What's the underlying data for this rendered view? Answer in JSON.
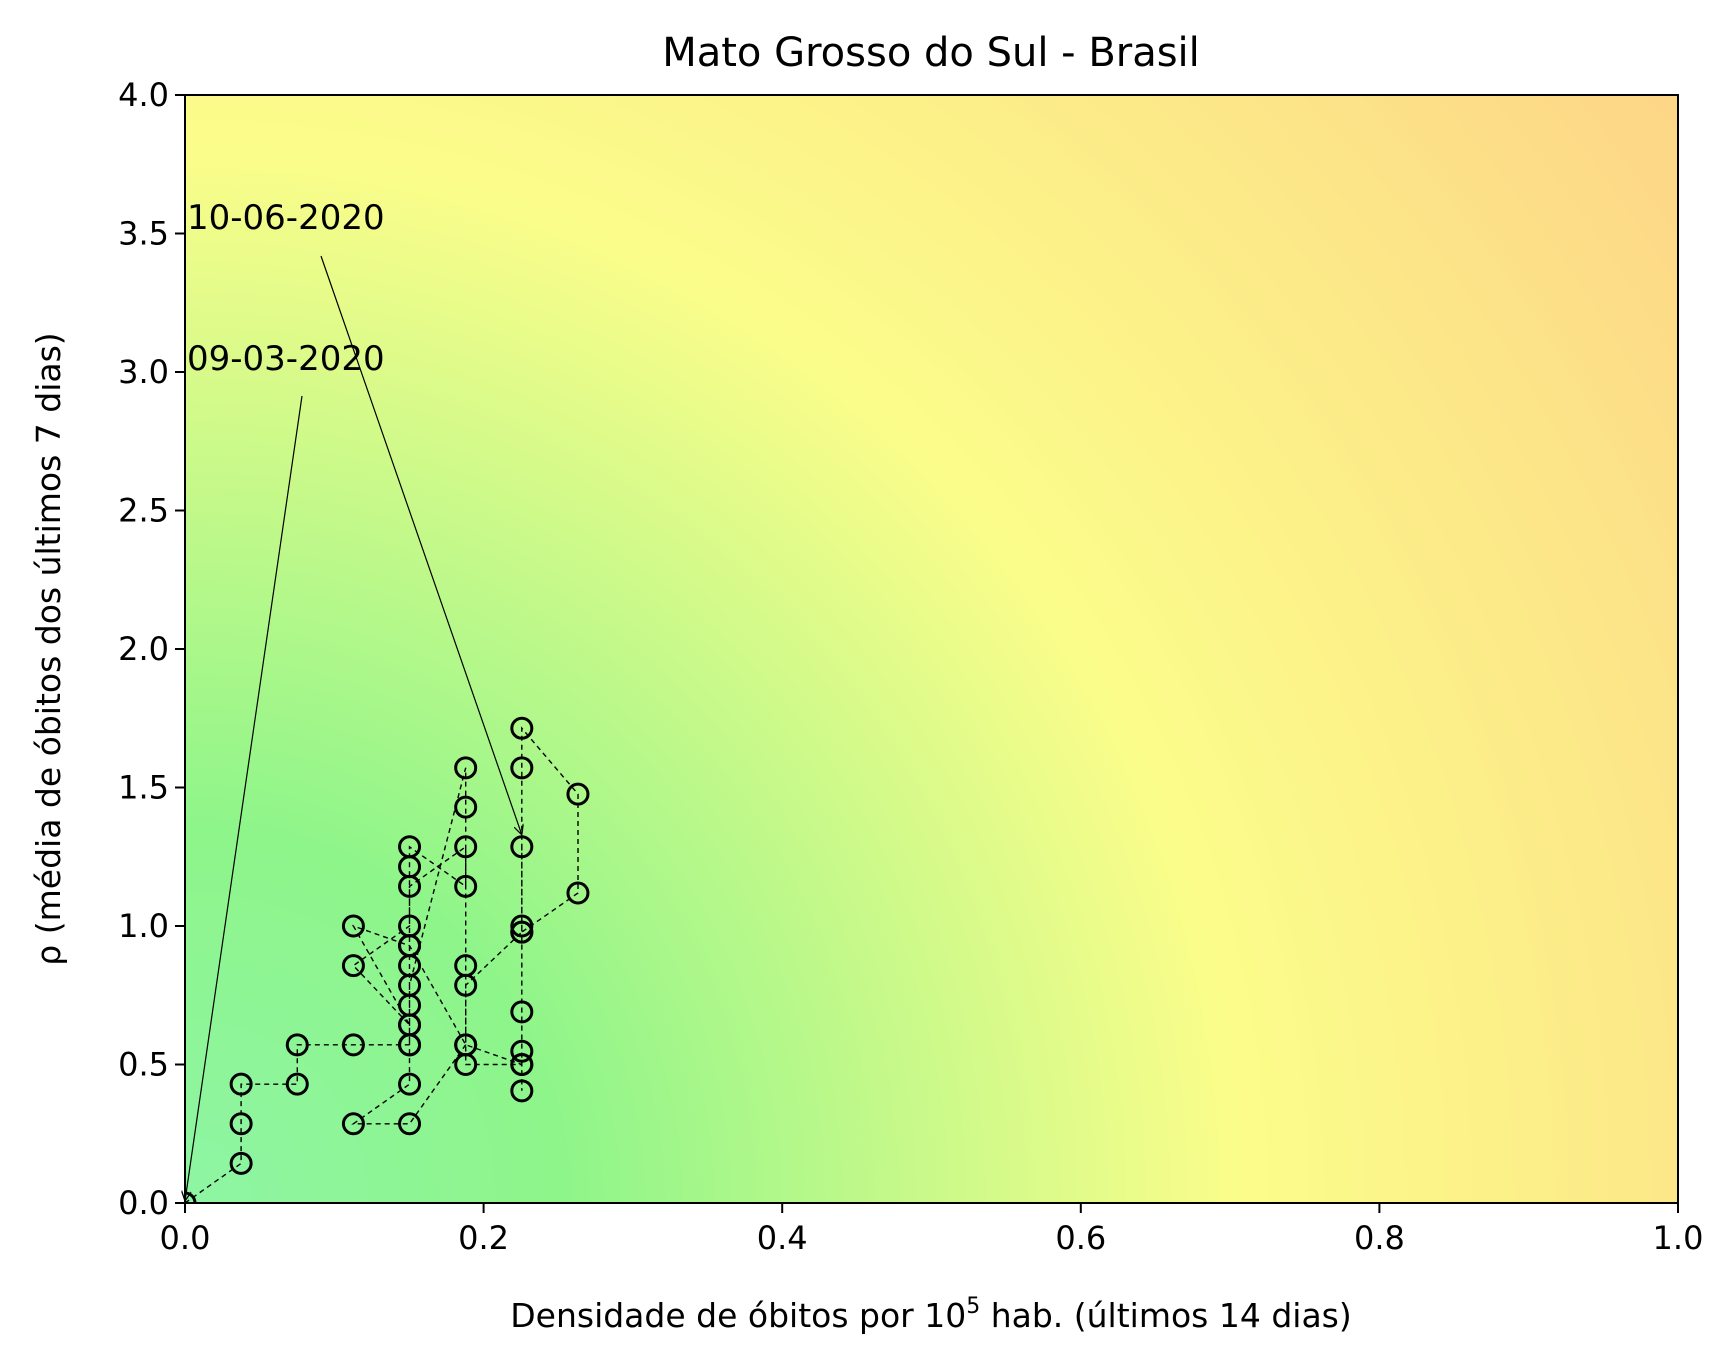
{
  "chart_data": {
    "type": "scatter",
    "title": "Mato Grosso do Sul - Brasil",
    "xlabel_main": "Densidade de óbitos por 10",
    "xlabel_sup": "5",
    "xlabel_rest": " hab. (últimos 14 dias)",
    "ylabel": "ρ (média de óbitos dos últimos 7 dias)",
    "xlim": [
      0.0,
      1.0
    ],
    "ylim": [
      0.0,
      4.0
    ],
    "xticks": [
      0.0,
      0.2,
      0.4,
      0.6,
      0.8,
      1.0
    ],
    "xtick_labels": [
      "0.0",
      "0.2",
      "0.4",
      "0.6",
      "0.8",
      "1.0"
    ],
    "yticks": [
      0.0,
      0.5,
      1.0,
      1.5,
      2.0,
      2.5,
      3.0,
      3.5,
      4.0
    ],
    "ytick_labels": [
      "0.0",
      "0.5",
      "1.0",
      "1.5",
      "2.0",
      "2.5",
      "3.0",
      "3.5",
      "4.0"
    ],
    "grid": false,
    "background": "risk-gradient: green (low) → yellow → orange (high)",
    "colors": {
      "low": "#8ef59b",
      "mid_green": "#8ef58a",
      "yellow": "#fbfd8a",
      "orange": "#fdd987",
      "marker_edge": "#000000",
      "line": "#000000"
    },
    "series": [
      {
        "marker": "hollow circle",
        "line": "dashed",
        "x": [
          0.0,
          0.0376,
          0.0376,
          0.0376,
          0.0752,
          0.0752,
          0.1128,
          0.1504,
          0.1504,
          0.1128,
          0.1504,
          0.188,
          0.188,
          0.2256,
          0.2256,
          0.2256,
          0.2256,
          0.2632,
          0.2632,
          0.2256,
          0.2256,
          0.188,
          0.188,
          0.188,
          0.1504,
          0.1504,
          0.1504,
          0.1504,
          0.1504,
          0.1128,
          0.1504,
          0.1504,
          0.1504,
          0.188,
          0.188,
          0.188,
          0.1504,
          0.1504,
          0.1504,
          0.1128,
          0.1504,
          0.188,
          0.2256,
          0.2256,
          0.2256,
          0.2256,
          0.2256
        ],
        "y": [
          0.0,
          0.143,
          0.286,
          0.429,
          0.429,
          0.571,
          0.571,
          0.571,
          0.429,
          0.286,
          0.286,
          0.571,
          0.786,
          0.978,
          1.0,
          1.571,
          1.714,
          1.476,
          1.119,
          0.978,
          0.5,
          0.5,
          0.857,
          1.286,
          1.143,
          0.929,
          0.857,
          0.714,
          0.643,
          0.857,
          1.0,
          1.214,
          1.286,
          1.143,
          1.429,
          1.571,
          0.786,
          0.571,
          0.643,
          1.0,
          0.929,
          0.571,
          0.5,
          0.405,
          0.548,
          0.69,
          1.286
        ]
      }
    ],
    "annotations": [
      {
        "text": "09-03-2020",
        "point": [
          0.0,
          0.0
        ]
      },
      {
        "text": "10-06-2020",
        "point": [
          0.2256,
          1.286
        ]
      }
    ]
  }
}
